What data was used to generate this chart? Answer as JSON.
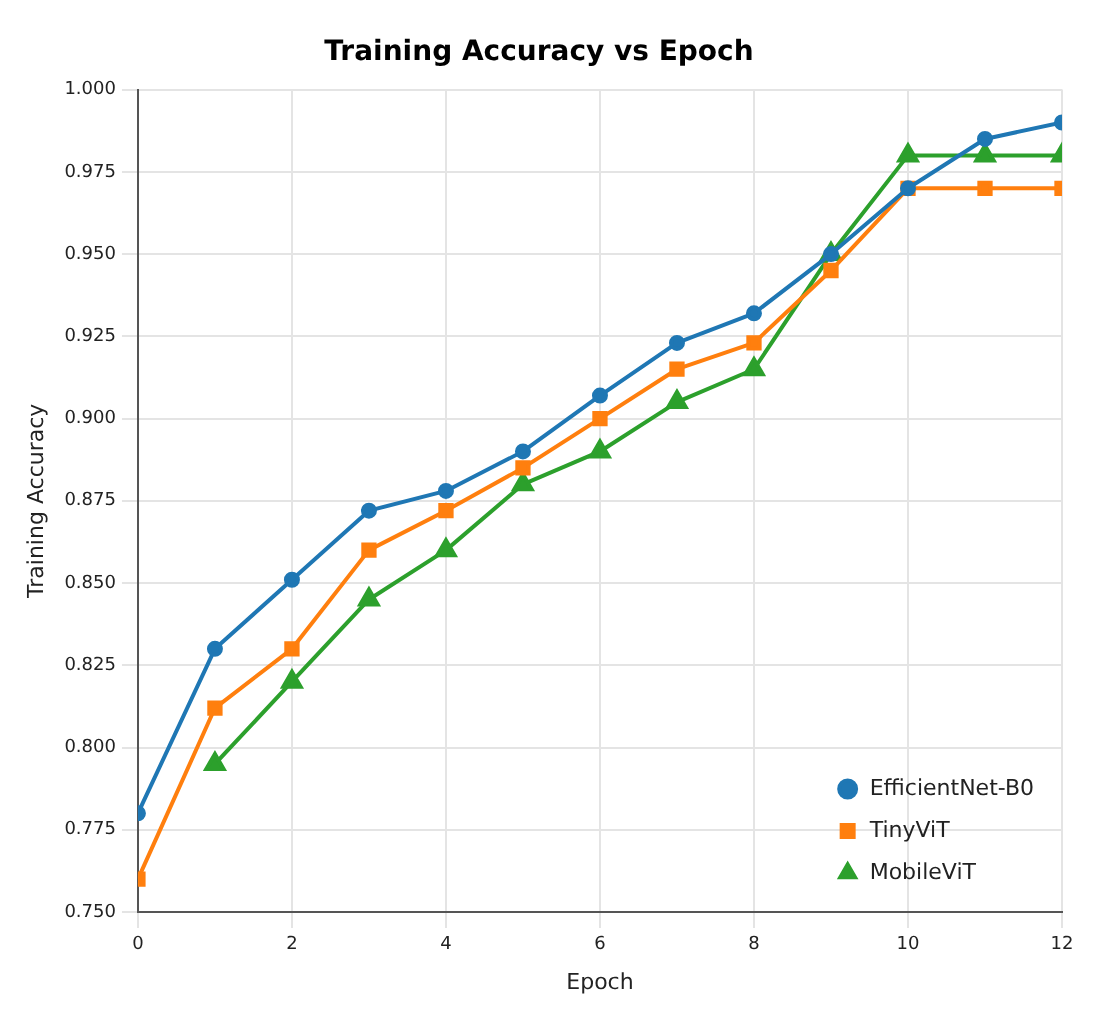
{
  "chart_data": {
    "type": "line",
    "title": "Training Accuracy vs Epoch",
    "xlabel": "Epoch",
    "ylabel": "Training Accuracy",
    "x": [
      0,
      1,
      2,
      3,
      4,
      5,
      6,
      7,
      8,
      9,
      10,
      11,
      12
    ],
    "series": [
      {
        "name": "EfficientNet-B0",
        "color": "#1f77b4",
        "marker": "circle",
        "values": [
          0.78,
          0.83,
          0.851,
          0.872,
          0.878,
          0.89,
          0.907,
          0.923,
          0.932,
          0.95,
          0.97,
          0.985,
          0.99
        ]
      },
      {
        "name": "TinyViT",
        "color": "#ff7f0e",
        "marker": "square",
        "values": [
          0.76,
          0.812,
          0.83,
          0.86,
          0.872,
          0.885,
          0.9,
          0.915,
          0.923,
          0.945,
          0.97,
          0.97,
          0.97
        ]
      },
      {
        "name": "MobileViT",
        "color": "#2ca02c",
        "marker": "triangle",
        "values": [
          null,
          0.795,
          0.82,
          0.845,
          0.86,
          0.88,
          0.89,
          0.905,
          0.915,
          0.95,
          0.98,
          0.98,
          0.98
        ]
      }
    ],
    "xlim": [
      0,
      12
    ],
    "xticks": [
      0,
      2,
      4,
      6,
      8,
      10,
      12
    ],
    "ylim": [
      0.75,
      1.0
    ],
    "yticks": [
      {
        "value": 0.75,
        "label": "0.750"
      },
      {
        "value": 0.775,
        "label": "0.775"
      },
      {
        "value": 0.8,
        "label": "0.800"
      },
      {
        "value": 0.825,
        "label": "0.825"
      },
      {
        "value": 0.85,
        "label": "0.850"
      },
      {
        "value": 0.875,
        "label": "0.875"
      },
      {
        "value": 0.9,
        "label": "0.900"
      },
      {
        "value": 0.925,
        "label": "0.925"
      },
      {
        "value": 0.95,
        "label": "0.950"
      },
      {
        "value": 0.975,
        "label": "0.975"
      },
      {
        "value": 1.0,
        "label": "1.000"
      }
    ],
    "grid": true,
    "legend": "bottom right",
    "line_style": "solid"
  }
}
